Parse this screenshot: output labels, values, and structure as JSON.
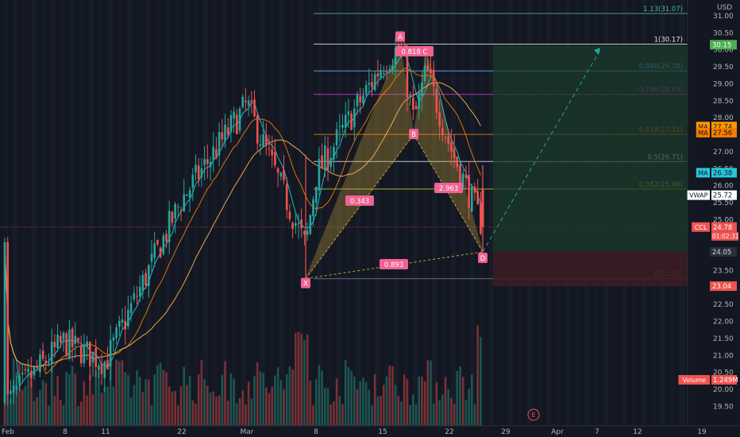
{
  "axis": {
    "currency": "USD",
    "price_ticks": [
      "31.00",
      "30.50",
      "30.00",
      "29.50",
      "29.00",
      "28.50",
      "28.00",
      "27.50",
      "27.00",
      "26.50",
      "26.00",
      "25.50",
      "25.00",
      "24.50",
      "24.00",
      "23.50",
      "23.00",
      "22.50",
      "22.00",
      "21.50",
      "21.00",
      "20.50",
      "20.00",
      "19.50"
    ],
    "date_ticks": [
      "Feb",
      "8",
      "11",
      "22",
      "Mar",
      "8",
      "15",
      "22",
      "29",
      "Apr",
      "7",
      "12",
      "19"
    ]
  },
  "fib_levels": [
    {
      "label": "1.13(31.07)",
      "price": 31.07,
      "color": "#4db6ac"
    },
    {
      "label": "1(30.17)",
      "price": 30.17,
      "color": "#e0e3eb"
    },
    {
      "label": "0.886(29.38)",
      "price": 29.38,
      "color": "#64b5f6"
    },
    {
      "label": "0.786(28.69)",
      "price": 28.69,
      "color": "#ce3adf"
    },
    {
      "label": "0.618(27.51)",
      "price": 27.51,
      "color": "#f57c00"
    },
    {
      "label": "0.5(26.71)",
      "price": 26.71,
      "color": "#e0e3eb"
    },
    {
      "label": "0.382(25.90)",
      "price": 25.9,
      "color": "#c0ca33"
    },
    {
      "label": "0(23.26)",
      "price": 23.26,
      "color": "#787b86"
    }
  ],
  "price_tags": [
    {
      "text": "30.15",
      "price": 30.15,
      "bg": "#4caf50",
      "fg": "#ffffff"
    },
    {
      "text": "MA",
      "value": "27.74",
      "price": 27.74,
      "bg": "#ff9800",
      "fg": "#131722"
    },
    {
      "text": "MA",
      "value": "27.56",
      "price": 27.56,
      "bg": "#f57c00",
      "fg": "#131722"
    },
    {
      "text": "MA",
      "value": "26.38",
      "price": 26.38,
      "bg": "#26c6da",
      "fg": "#131722"
    },
    {
      "text": "VWAP",
      "value": "25.72",
      "price": 25.72,
      "bg": "#ffffff",
      "fg": "#131722"
    },
    {
      "text": "CCL",
      "value": "24.78",
      "sub": "01:02:31",
      "price": 24.78,
      "bg": "#ef5350",
      "fg": "#ffffff"
    },
    {
      "text": "24.05",
      "price": 24.05,
      "bg": "#2a2e39",
      "fg": "#d1d4dc"
    },
    {
      "text": "23.04",
      "price": 23.04,
      "bg": "#ef5350",
      "fg": "#ffffff"
    },
    {
      "text": "Volume",
      "value": "1.249M",
      "price": 20.28,
      "bg": "#ef5350",
      "fg": "#ffffff"
    }
  ],
  "pattern": {
    "points": [
      {
        "name": "X",
        "date": "Mar 7",
        "price": 23.26
      },
      {
        "name": "A",
        "date": "Mar 16",
        "price": 30.17
      },
      {
        "name": "B",
        "date": "Mar 18",
        "price": 27.51
      },
      {
        "name": "C",
        "date": "Mar 19",
        "price": 29.95
      },
      {
        "name": "D",
        "date": "Mar 24",
        "price": 24.05
      }
    ],
    "ratios": [
      {
        "text": "0.343",
        "at": "XB"
      },
      {
        "text": "0.818 C",
        "at": "AC"
      },
      {
        "text": "2.963",
        "at": "BD"
      },
      {
        "text": "0.893",
        "at": "XD"
      }
    ],
    "target_price": 30.15,
    "stop_price": 23.04,
    "entry_price": 24.05
  },
  "footer": {
    "event_marker": "E"
  },
  "chart_data": {
    "type": "candlestick",
    "title": "",
    "xlabel": "",
    "ylabel": "",
    "ylim": [
      19.1,
      31.35
    ],
    "x": [
      "Feb 3",
      "Feb 8",
      "Feb 11",
      "Feb 22",
      "Mar 1",
      "Mar 7",
      "Mar 8",
      "Mar 15",
      "Mar 16",
      "Mar 18",
      "Mar 19",
      "Mar 22",
      "Mar 24"
    ],
    "close_series": [
      {
        "date": "Feb 3",
        "price": 19.6
      },
      {
        "date": "Feb 8",
        "price": 21.4
      },
      {
        "date": "Feb 11",
        "price": 20.8
      },
      {
        "date": "Feb 22",
        "price": 25.6
      },
      {
        "date": "Mar 1",
        "price": 28.4
      },
      {
        "date": "Mar 7",
        "price": 24.2
      },
      {
        "date": "Mar 8",
        "price": 26.3
      },
      {
        "date": "Mar 15",
        "price": 29.6
      },
      {
        "date": "Mar 16",
        "price": 30.1
      },
      {
        "date": "Mar 18",
        "price": 27.9
      },
      {
        "date": "Mar 19",
        "price": 29.4
      },
      {
        "date": "Mar 22",
        "price": 27.2
      },
      {
        "date": "Mar 24",
        "price": 24.78
      }
    ],
    "last_price": 24.78,
    "volume_last": "1.249M"
  }
}
